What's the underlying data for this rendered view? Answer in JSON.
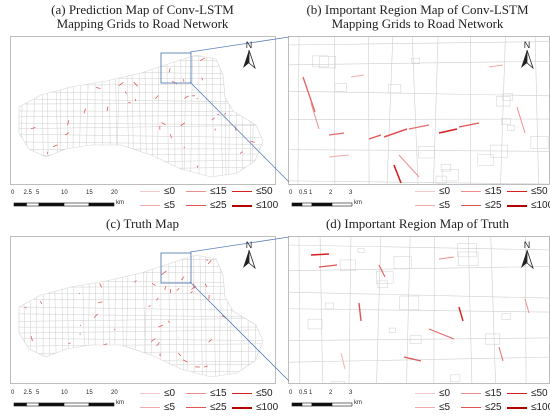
{
  "panels": {
    "a": {
      "title": "(a) Prediction Map of Conv-LSTM\nMapping Grids to Road Network"
    },
    "b": {
      "title": "(b)  Important Region Map of Conv-LSTM\nMapping Grids to Road Network"
    },
    "c": {
      "title": "(c) Truth Map"
    },
    "d": {
      "title": "(d) Important Region Map of Truth"
    }
  },
  "north_label": "N",
  "scale_main": {
    "ticks": [
      "0",
      "2.5",
      "5",
      "10",
      "15",
      "20"
    ],
    "unit": "km"
  },
  "scale_zoom": {
    "ticks": [
      "0",
      "0.5",
      "1",
      "2",
      "3"
    ],
    "unit": "km"
  },
  "legend": [
    {
      "label": "≤0",
      "color": "#f6c9c9",
      "width": 1
    },
    {
      "label": "≤15",
      "color": "#ef8e8e",
      "width": 1
    },
    {
      "label": "≤50",
      "color": "#d62020",
      "width": 1.5
    },
    {
      "label": "≤5",
      "color": "#f3aaaa",
      "width": 1
    },
    {
      "label": "≤25",
      "color": "#e05454",
      "width": 1.5
    },
    {
      "label": "≤100",
      "color": "#b30000",
      "width": 2
    }
  ],
  "colors": {
    "road": "#cfcfcf",
    "highlight": "#e05a5a",
    "frame": "#5b7fb8"
  }
}
